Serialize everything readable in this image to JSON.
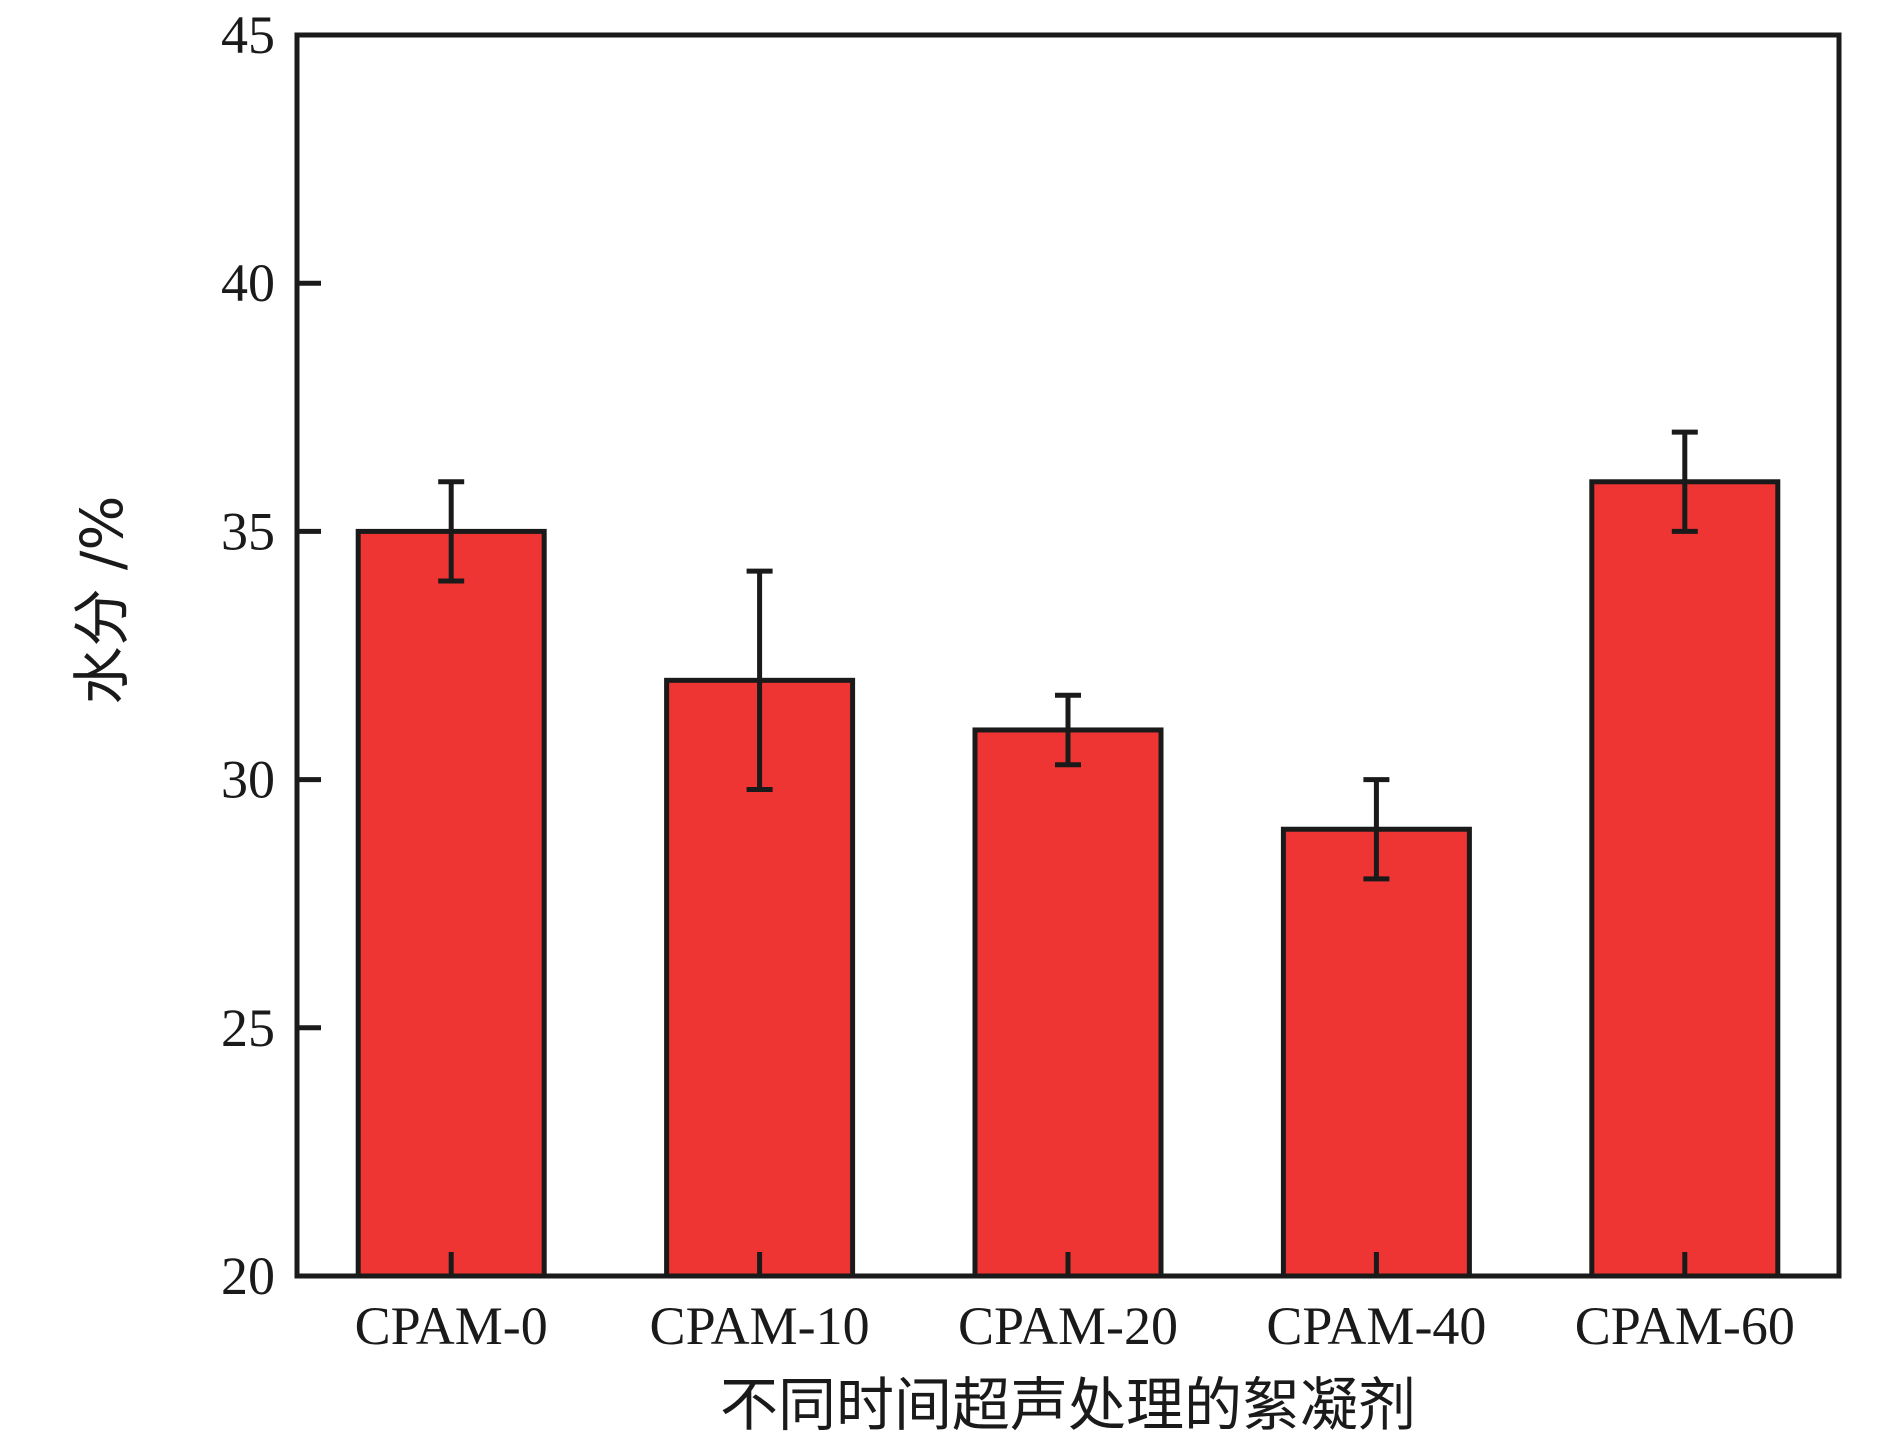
{
  "chart_data": {
    "type": "bar",
    "xlabel": "不同时间超声处理的絮凝剂",
    "ylabel": "水分 /%",
    "ylim": [
      20,
      45
    ],
    "yticks": [
      20,
      25,
      30,
      35,
      40,
      45
    ],
    "grid": false,
    "legend": "none",
    "colors": {
      "bar": "#ee3533",
      "edge": "#1a1a1a"
    },
    "categories": [
      "CPAM-0",
      "CPAM-10",
      "CPAM-20",
      "CPAM-40",
      "CPAM-60"
    ],
    "values": [
      35.0,
      32.0,
      31.0,
      29.0,
      36.0
    ],
    "errors": [
      1.0,
      2.2,
      0.7,
      1.0,
      1.0
    ]
  }
}
